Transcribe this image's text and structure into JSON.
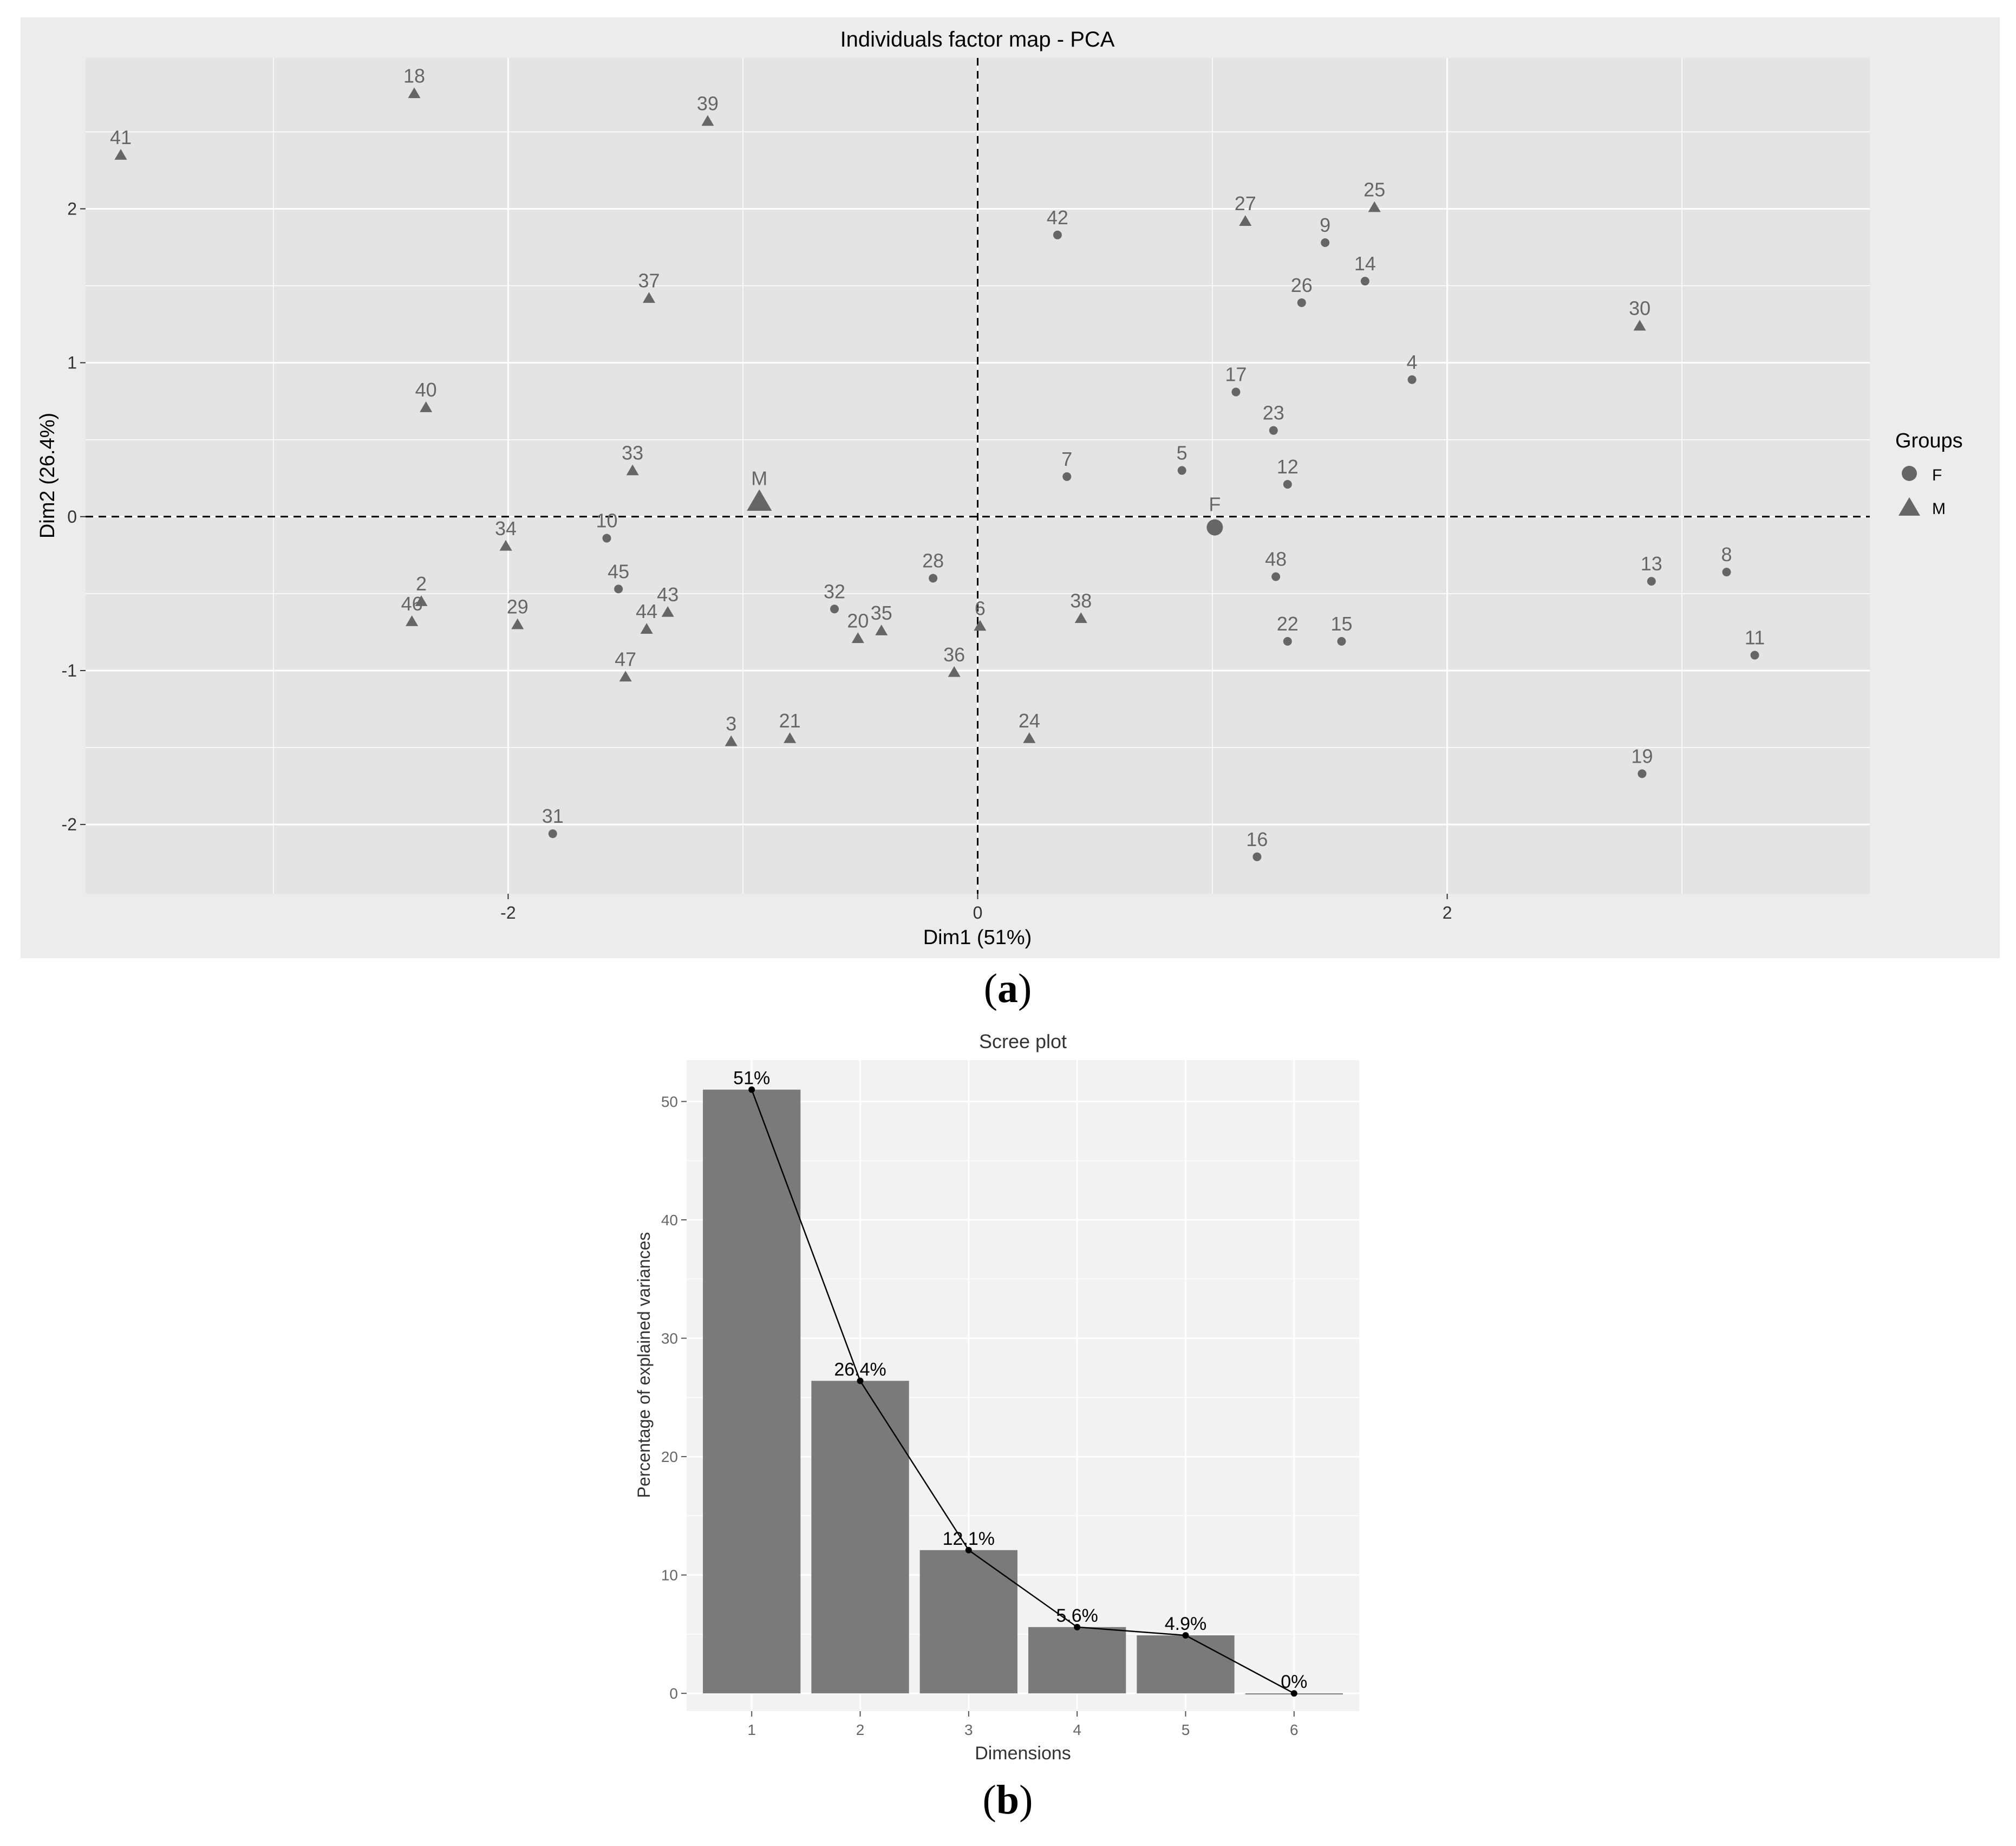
{
  "chart_data": [
    {
      "type": "scatter",
      "title": "Individuals factor map - PCA",
      "xlabel": "Dim1 (51%)",
      "ylabel": "Dim2 (26.4%)",
      "xlim": [
        -3.8,
        3.8
      ],
      "ylim": [
        -2.45,
        2.98
      ],
      "xticks": [
        -2,
        0,
        2
      ],
      "yticks": [
        -2,
        -1,
        0,
        1,
        2
      ],
      "grid": true,
      "reference_lines": {
        "x": 0,
        "y": 0,
        "style": "dashed"
      },
      "legend": {
        "title": "Groups",
        "position": "right",
        "entries": [
          {
            "label": "F",
            "shape": "circle"
          },
          {
            "label": "M",
            "shape": "triangle"
          }
        ]
      },
      "points": [
        {
          "label": "41",
          "x": -3.65,
          "y": 2.35,
          "group": "M"
        },
        {
          "label": "18",
          "x": -2.4,
          "y": 2.75,
          "group": "M"
        },
        {
          "label": "39",
          "x": -1.15,
          "y": 2.57,
          "group": "M"
        },
        {
          "label": "37",
          "x": -1.4,
          "y": 1.42,
          "group": "M"
        },
        {
          "label": "40",
          "x": -2.35,
          "y": 0.71,
          "group": "M"
        },
        {
          "label": "33",
          "x": -1.47,
          "y": 0.3,
          "group": "M"
        },
        {
          "label": "34",
          "x": -2.01,
          "y": -0.19,
          "group": "M"
        },
        {
          "label": "10",
          "x": -1.58,
          "y": -0.14,
          "group": "F"
        },
        {
          "label": "2",
          "x": -2.37,
          "y": -0.55,
          "group": "M"
        },
        {
          "label": "46",
          "x": -2.41,
          "y": -0.68,
          "group": "M"
        },
        {
          "label": "29",
          "x": -1.96,
          "y": -0.7,
          "group": "M"
        },
        {
          "label": "45",
          "x": -1.53,
          "y": -0.47,
          "group": "F"
        },
        {
          "label": "43",
          "x": -1.32,
          "y": -0.62,
          "group": "M"
        },
        {
          "label": "44",
          "x": -1.41,
          "y": -0.73,
          "group": "M"
        },
        {
          "label": "47",
          "x": -1.5,
          "y": -1.04,
          "group": "M"
        },
        {
          "label": "3",
          "x": -1.05,
          "y": -1.46,
          "group": "M"
        },
        {
          "label": "21",
          "x": -0.8,
          "y": -1.44,
          "group": "M"
        },
        {
          "label": "31",
          "x": -1.81,
          "y": -2.06,
          "group": "F"
        },
        {
          "label": "32",
          "x": -0.61,
          "y": -0.6,
          "group": "F"
        },
        {
          "label": "20",
          "x": -0.51,
          "y": -0.79,
          "group": "M"
        },
        {
          "label": "35",
          "x": -0.41,
          "y": -0.74,
          "group": "M"
        },
        {
          "label": "28",
          "x": -0.19,
          "y": -0.4,
          "group": "F"
        },
        {
          "label": "6",
          "x": 0.01,
          "y": -0.71,
          "group": "M"
        },
        {
          "label": "36",
          "x": -0.1,
          "y": -1.01,
          "group": "M"
        },
        {
          "label": "24",
          "x": 0.22,
          "y": -1.44,
          "group": "M"
        },
        {
          "label": "38",
          "x": 0.44,
          "y": -0.66,
          "group": "M"
        },
        {
          "label": "7",
          "x": 0.38,
          "y": 0.26,
          "group": "F"
        },
        {
          "label": "42",
          "x": 0.34,
          "y": 1.83,
          "group": "F"
        },
        {
          "label": "5",
          "x": 0.87,
          "y": 0.3,
          "group": "F"
        },
        {
          "label": "27",
          "x": 1.14,
          "y": 1.92,
          "group": "M"
        },
        {
          "label": "9",
          "x": 1.48,
          "y": 1.78,
          "group": "F"
        },
        {
          "label": "25",
          "x": 1.69,
          "y": 2.01,
          "group": "M"
        },
        {
          "label": "14",
          "x": 1.65,
          "y": 1.53,
          "group": "F"
        },
        {
          "label": "26",
          "x": 1.38,
          "y": 1.39,
          "group": "F"
        },
        {
          "label": "17",
          "x": 1.1,
          "y": 0.81,
          "group": "F"
        },
        {
          "label": "4",
          "x": 1.85,
          "y": 0.89,
          "group": "F"
        },
        {
          "label": "23",
          "x": 1.26,
          "y": 0.56,
          "group": "F"
        },
        {
          "label": "12",
          "x": 1.32,
          "y": 0.21,
          "group": "F"
        },
        {
          "label": "48",
          "x": 1.27,
          "y": -0.39,
          "group": "F"
        },
        {
          "label": "22",
          "x": 1.32,
          "y": -0.81,
          "group": "F"
        },
        {
          "label": "15",
          "x": 1.55,
          "y": -0.81,
          "group": "F"
        },
        {
          "label": "16",
          "x": 1.19,
          "y": -2.21,
          "group": "F"
        },
        {
          "label": "30",
          "x": 2.82,
          "y": 1.24,
          "group": "M"
        },
        {
          "label": "13",
          "x": 2.87,
          "y": -0.42,
          "group": "F"
        },
        {
          "label": "8",
          "x": 3.19,
          "y": -0.36,
          "group": "F"
        },
        {
          "label": "11",
          "x": 3.31,
          "y": -0.9,
          "group": "F"
        },
        {
          "label": "19",
          "x": 2.83,
          "y": -1.67,
          "group": "F"
        }
      ],
      "group_centers": [
        {
          "label": "M",
          "x": -0.93,
          "y": 0.1,
          "group": "M"
        },
        {
          "label": "F",
          "x": 1.01,
          "y": -0.07,
          "group": "F"
        }
      ]
    },
    {
      "type": "bar",
      "title": "Scree plot",
      "xlabel": "Dimensions",
      "ylabel": "Percentage of explained variances",
      "categories": [
        "1",
        "2",
        "3",
        "4",
        "5",
        "6"
      ],
      "values": [
        51,
        26.4,
        12.1,
        5.6,
        4.9,
        0
      ],
      "value_labels": [
        "51%",
        "26.4%",
        "12.1%",
        "5.6%",
        "4.9%",
        "0%"
      ],
      "ylim": [
        -1.5,
        53.5
      ],
      "yticks": [
        0,
        10,
        20,
        30,
        40,
        50
      ],
      "grid": true,
      "overlay": "line"
    }
  ],
  "captions": {
    "a_open": "(",
    "a_letter": "a",
    "a_close": ")",
    "b_open": "(",
    "b_letter": "b",
    "b_close": ")"
  },
  "colors": {
    "panel_pca": "#e4e4e4",
    "panel_scree": "#f2f2f2",
    "grid": "#ffffff",
    "points": "#666666",
    "bars": "#7a7a7a",
    "outer_bg": "#ececec"
  }
}
